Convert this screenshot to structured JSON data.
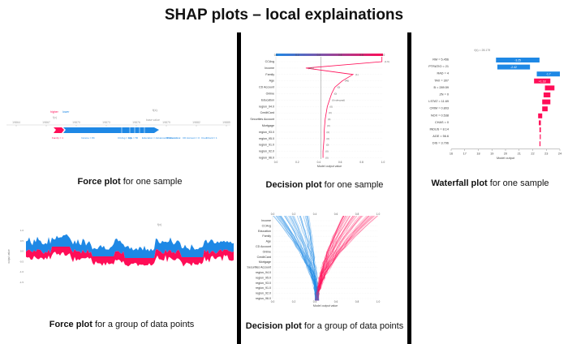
{
  "title": "SHAP plots – local explainations",
  "captions": {
    "force_single": {
      "bold": "Force plot",
      "rest": " for one sample"
    },
    "decision_single": {
      "bold": "Decision plot",
      "rest": " for one sample"
    },
    "waterfall_single": {
      "bold": "Waterfall plot",
      "rest": " for one sample"
    },
    "force_group": {
      "bold": "Force plot",
      "rest": " for a group of data points"
    },
    "decision_group": {
      "bold": "Decision plot",
      "rest": " for a group of data points"
    }
  },
  "force_single": {
    "fx_label": "f(x)",
    "base_label": "base value",
    "legend_higher": "higher",
    "legend_lower": "lower",
    "axis_ticks": [
      "19864",
      "19867",
      "19870",
      "19873",
      "19876",
      "19879",
      "19882",
      "19885"
    ],
    "features_red": [
      "Family = 1"
    ],
    "features_blue": [
      "Income = 84",
      "CCAvg = 0.9",
      "Age = 56",
      "Education = Advanced/Professional",
      "Online = 1",
      "CD Account = 0",
      "CreditCard = 1"
    ],
    "colors": {
      "red": "#ff0d57",
      "blue": "#1e88e5"
    }
  },
  "decision_single": {
    "xlabel": "Model output value",
    "xticks": [
      "0.0",
      "0.2",
      "0.4",
      "0.6",
      "0.8",
      "1.0"
    ],
    "features": [
      "CCAvg",
      "Income",
      "Family",
      "Age",
      "CD Account",
      "Online",
      "Education",
      "region_94.0",
      "CreditCard",
      "Securities Account",
      "Mortgage",
      "region_93.0",
      "region_95.0",
      "region_91.0",
      "region_92.0",
      "region_96.0"
    ],
    "value_labels": [
      "(1.9)",
      "(183)",
      "(1)",
      "(46)",
      "(0)",
      "(0)",
      "(Undergrad)",
      "(0)",
      "(0)",
      "(0)",
      "(0)",
      "(0)",
      "(0)",
      "(0)",
      "(0)",
      "(0)"
    ]
  },
  "waterfall": {
    "fx_label": "f(x) = 28.179",
    "expected_label": "E[f(X)] = 22.533",
    "xlabel": "Model output",
    "xticks": [
      "16",
      "17",
      "18",
      "19",
      "20",
      "21",
      "22",
      "23",
      "24"
    ],
    "rows": [
      {
        "feature": "RM = 5.456",
        "value": "-3.25"
      },
      {
        "feature": "PTRATIO = 21",
        "value": "-2.42"
      },
      {
        "feature": "RAD = 4",
        "value": "-1.7"
      },
      {
        "feature": "TAX = 307",
        "value": "+1.18"
      },
      {
        "feature": "B = 289.59",
        "value": ""
      },
      {
        "feature": "ZN = 0",
        "value": ""
      },
      {
        "feature": "LSTAT = 11.69",
        "value": ""
      },
      {
        "feature": "CRIM = 0.803",
        "value": ""
      },
      {
        "feature": "NOX = 0.538",
        "value": ""
      },
      {
        "feature": "CHAS = 0",
        "value": ""
      },
      {
        "feature": "INDUS = 8.14",
        "value": ""
      },
      {
        "feature": "AGE = 56.6",
        "value": ""
      },
      {
        "feature": "DIS = 3.796",
        "value": ""
      }
    ]
  },
  "force_group": {
    "top_label": "f(x)",
    "ylabel": "output value",
    "yticks": [
      "1.0",
      "0.5",
      "0.0",
      "-0.5",
      "-1.0",
      "-1.5"
    ]
  },
  "decision_group": {
    "xlabel": "Model output value",
    "xticks": [
      "0.0",
      "0.2",
      "0.4",
      "0.6",
      "0.8",
      "1.0"
    ],
    "features": [
      "Income",
      "CCAvg",
      "Education",
      "Family",
      "Age",
      "CD Account",
      "Online",
      "CreditCard",
      "Mortgage",
      "Securities Account",
      "region_94.0",
      "region_95.0",
      "region_93.0",
      "region_91.0",
      "region_92.0",
      "region_96.0"
    ]
  }
}
